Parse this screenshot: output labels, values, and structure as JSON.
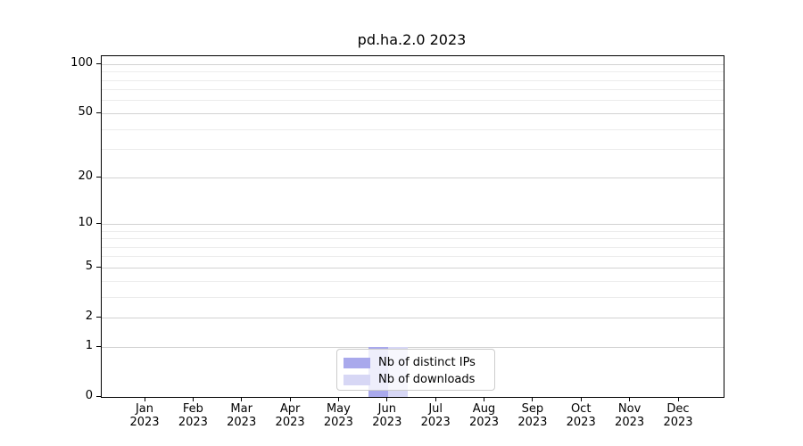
{
  "chart_data": {
    "type": "bar",
    "title": "pd.ha.2.0 2023",
    "x_months": [
      "Jan",
      "Feb",
      "Mar",
      "Apr",
      "May",
      "Jun",
      "Jul",
      "Aug",
      "Sep",
      "Oct",
      "Nov",
      "Dec"
    ],
    "x_year": "2023",
    "series": [
      {
        "name": "Nb of distinct IPs",
        "color": "#a9a9ec",
        "values": [
          0,
          0,
          0,
          0,
          0,
          1,
          0,
          0,
          0,
          0,
          0,
          0
        ]
      },
      {
        "name": "Nb of downloads",
        "color": "#d7d7f5",
        "values": [
          0,
          0,
          0,
          0,
          0,
          1,
          0,
          0,
          0,
          0,
          0,
          0
        ]
      }
    ],
    "y_axis": {
      "scale": "log10(value+1)",
      "major_ticks": [
        0,
        1,
        2,
        5,
        10,
        20,
        50,
        100
      ],
      "minor_ticks": [
        3,
        4,
        6,
        7,
        8,
        9,
        30,
        40,
        60,
        70,
        80,
        90
      ],
      "range": [
        0,
        110
      ]
    },
    "legend": {
      "position": "lower center",
      "entries": [
        "Nb of distinct IPs",
        "Nb of downloads"
      ]
    },
    "grid": true,
    "colors": {
      "major_grid": "#d2d2d2",
      "minor_grid": "#ececec",
      "spine": "#000000",
      "background": "#ffffff"
    }
  }
}
